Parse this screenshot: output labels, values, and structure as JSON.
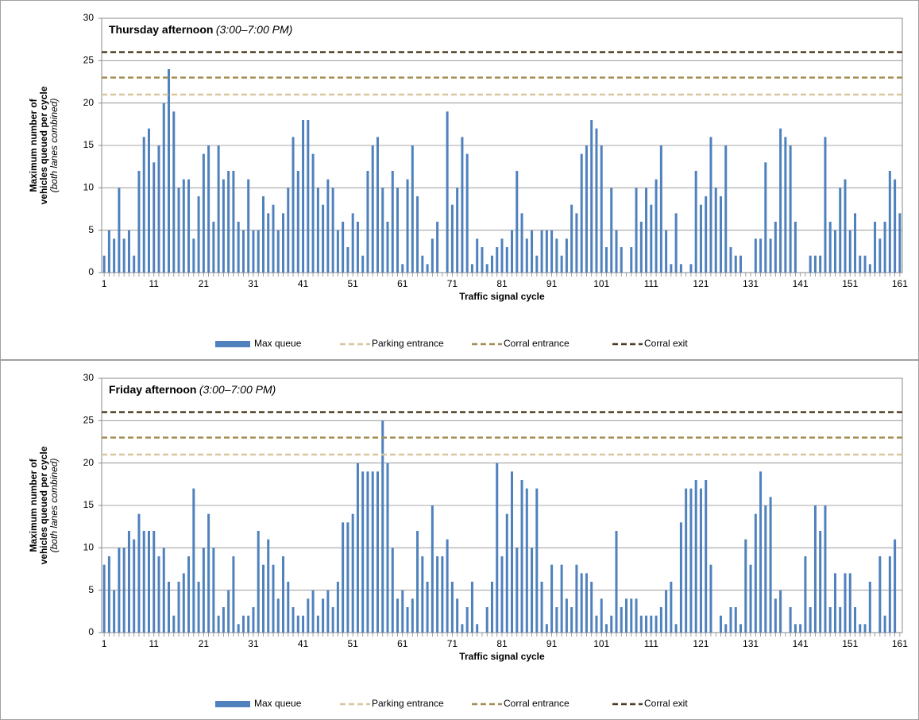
{
  "chart_data": [
    {
      "type": "bar",
      "title": "Thursday afternoon",
      "subtitle": "(3:00–7:00 PM)",
      "ylabel": [
        "Maximum number of",
        "vehicles queued per cycle"
      ],
      "ylabel_note": "(both lanes combined)",
      "xlabel": "Traffic signal cycle",
      "x": [
        1,
        2,
        3,
        4,
        5,
        6,
        7,
        8,
        9,
        10,
        11,
        12,
        13,
        14,
        15,
        16,
        17,
        18,
        19,
        20,
        21,
        22,
        23,
        24,
        25,
        26,
        27,
        28,
        29,
        30,
        31,
        32,
        33,
        34,
        35,
        36,
        37,
        38,
        39,
        40,
        41,
        42,
        43,
        44,
        45,
        46,
        47,
        48,
        49,
        50,
        51,
        52,
        53,
        54,
        55,
        56,
        57,
        58,
        59,
        60,
        61,
        62,
        63,
        64,
        65,
        66,
        67,
        68,
        69,
        70,
        71,
        72,
        73,
        74,
        75,
        76,
        77,
        78,
        79,
        80,
        81,
        82,
        83,
        84,
        85,
        86,
        87,
        88,
        89,
        90,
        91,
        92,
        93,
        94,
        95,
        96,
        97,
        98,
        99,
        100,
        101,
        102,
        103,
        104,
        105,
        106,
        107,
        108,
        109,
        110,
        111,
        112,
        113,
        114,
        115,
        116,
        117,
        118,
        119,
        120,
        121,
        122,
        123,
        124,
        125,
        126,
        127,
        128,
        129,
        130,
        131,
        132,
        133,
        134,
        135,
        136,
        137,
        138,
        139,
        140,
        141,
        142,
        143,
        144,
        145,
        146,
        147,
        148,
        149,
        150,
        151,
        152,
        153,
        154,
        155,
        156,
        157,
        158,
        159,
        160,
        161
      ],
      "series": [
        {
          "name": "Max queue",
          "color": "#4f81bd",
          "values": [
            2,
            5,
            4,
            10,
            4,
            5,
            2,
            12,
            16,
            17,
            13,
            15,
            20,
            24,
            19,
            10,
            11,
            11,
            4,
            9,
            14,
            15,
            6,
            15,
            11,
            12,
            12,
            6,
            5,
            11,
            5,
            5,
            9,
            7,
            8,
            5,
            7,
            10,
            16,
            12,
            18,
            18,
            14,
            10,
            8,
            11,
            10,
            5,
            6,
            3,
            7,
            6,
            2,
            12,
            15,
            16,
            10,
            6,
            12,
            10,
            1,
            11,
            15,
            9,
            2,
            1,
            4,
            6,
            0,
            19,
            8,
            10,
            16,
            14,
            1,
            4,
            3,
            1,
            2,
            3,
            4,
            3,
            5,
            12,
            7,
            4,
            5,
            2,
            5,
            5,
            5,
            4,
            2,
            4,
            8,
            7,
            14,
            15,
            18,
            17,
            15,
            3,
            10,
            5,
            3,
            0,
            3,
            10,
            6,
            10,
            8,
            11,
            15,
            5,
            1,
            7,
            1,
            0,
            1,
            12,
            8,
            9,
            16,
            10,
            9,
            15,
            3,
            2,
            2,
            0,
            0,
            4,
            4,
            13,
            4,
            6,
            17,
            16,
            15,
            6,
            0,
            0,
            2,
            2,
            2,
            16,
            6,
            5,
            10,
            11,
            5,
            7,
            2,
            2,
            1,
            6,
            4,
            6,
            12,
            11,
            7
          ]
        }
      ],
      "reference_lines": [
        {
          "name": "Parking entrance",
          "color": "#d9c6a0",
          "value": 21
        },
        {
          "name": "Corral entrance",
          "color": "#a38f55",
          "value": 23
        },
        {
          "name": "Corral exit",
          "color": "#4d3f22",
          "value": 26
        }
      ],
      "xlim": [
        0.5,
        161.5
      ],
      "xticks": [
        1,
        11,
        21,
        31,
        41,
        51,
        61,
        71,
        81,
        91,
        101,
        111,
        121,
        131,
        141,
        151,
        161
      ],
      "ylim": [
        0,
        30
      ],
      "yticks": [
        0,
        5,
        10,
        15,
        20,
        25,
        30
      ],
      "grid": true,
      "legend": "bottom"
    },
    {
      "type": "bar",
      "title": "Friday afternoon",
      "subtitle": "(3:00–7:00 PM)",
      "ylabel": [
        "Maximum number of",
        "vehicles queued per cycle"
      ],
      "ylabel_note": "(both lanes combined)",
      "xlabel": "Traffic signal cycle",
      "x": [
        1,
        2,
        3,
        4,
        5,
        6,
        7,
        8,
        9,
        10,
        11,
        12,
        13,
        14,
        15,
        16,
        17,
        18,
        19,
        20,
        21,
        22,
        23,
        24,
        25,
        26,
        27,
        28,
        29,
        30,
        31,
        32,
        33,
        34,
        35,
        36,
        37,
        38,
        39,
        40,
        41,
        42,
        43,
        44,
        45,
        46,
        47,
        48,
        49,
        50,
        51,
        52,
        53,
        54,
        55,
        56,
        57,
        58,
        59,
        60,
        61,
        62,
        63,
        64,
        65,
        66,
        67,
        68,
        69,
        70,
        71,
        72,
        73,
        74,
        75,
        76,
        77,
        78,
        79,
        80,
        81,
        82,
        83,
        84,
        85,
        86,
        87,
        88,
        89,
        90,
        91,
        92,
        93,
        94,
        95,
        96,
        97,
        98,
        99,
        100,
        101,
        102,
        103,
        104,
        105,
        106,
        107,
        108,
        109,
        110,
        111,
        112,
        113,
        114,
        115,
        116,
        117,
        118,
        119,
        120,
        121,
        122,
        123,
        124,
        125,
        126,
        127,
        128,
        129,
        130,
        131,
        132,
        133,
        134,
        135,
        136,
        137,
        138,
        139,
        140,
        141,
        142,
        143,
        144,
        145,
        146,
        147,
        148,
        149,
        150,
        151,
        152,
        153,
        154,
        155,
        156,
        157,
        158,
        159,
        160,
        161
      ],
      "series": [
        {
          "name": "Max queue",
          "color": "#4f81bd",
          "values": [
            8,
            9,
            5,
            10,
            10,
            12,
            11,
            14,
            12,
            12,
            12,
            9,
            10,
            6,
            2,
            6,
            7,
            9,
            17,
            6,
            10,
            14,
            10,
            2,
            3,
            5,
            9,
            1,
            2,
            2,
            3,
            12,
            8,
            11,
            8,
            4,
            9,
            6,
            3,
            2,
            2,
            4,
            5,
            2,
            4,
            5,
            3,
            6,
            13,
            13,
            14,
            20,
            19,
            19,
            19,
            19,
            25,
            20,
            10,
            4,
            5,
            3,
            4,
            12,
            9,
            6,
            15,
            9,
            9,
            11,
            6,
            4,
            1,
            3,
            6,
            1,
            0,
            3,
            6,
            20,
            9,
            14,
            19,
            10,
            18,
            17,
            10,
            17,
            6,
            1,
            8,
            3,
            8,
            4,
            3,
            8,
            7,
            7,
            6,
            2,
            4,
            1,
            2,
            12,
            3,
            4,
            4,
            4,
            2,
            2,
            2,
            2,
            3,
            5,
            6,
            1,
            13,
            17,
            17,
            18,
            17,
            18,
            8,
            0,
            2,
            1,
            3,
            3,
            1,
            11,
            8,
            14,
            19,
            15,
            16,
            4,
            5,
            0,
            3,
            1,
            1,
            9,
            3,
            15,
            12,
            15,
            3,
            7,
            3,
            7,
            7,
            3,
            1,
            1,
            6,
            0,
            9,
            2,
            9,
            11,
            0
          ]
        }
      ],
      "reference_lines": [
        {
          "name": "Parking entrance",
          "color": "#d9c6a0",
          "value": 21
        },
        {
          "name": "Corral entrance",
          "color": "#a38f55",
          "value": 23
        },
        {
          "name": "Corral exit",
          "color": "#4d3f22",
          "value": 26
        }
      ],
      "xlim": [
        0.5,
        161.5
      ],
      "xticks": [
        1,
        11,
        21,
        31,
        41,
        51,
        61,
        71,
        81,
        91,
        101,
        111,
        121,
        131,
        141,
        151,
        161
      ],
      "ylim": [
        0,
        30
      ],
      "yticks": [
        0,
        5,
        10,
        15,
        20,
        25,
        30
      ],
      "grid": true,
      "legend": "bottom"
    }
  ]
}
